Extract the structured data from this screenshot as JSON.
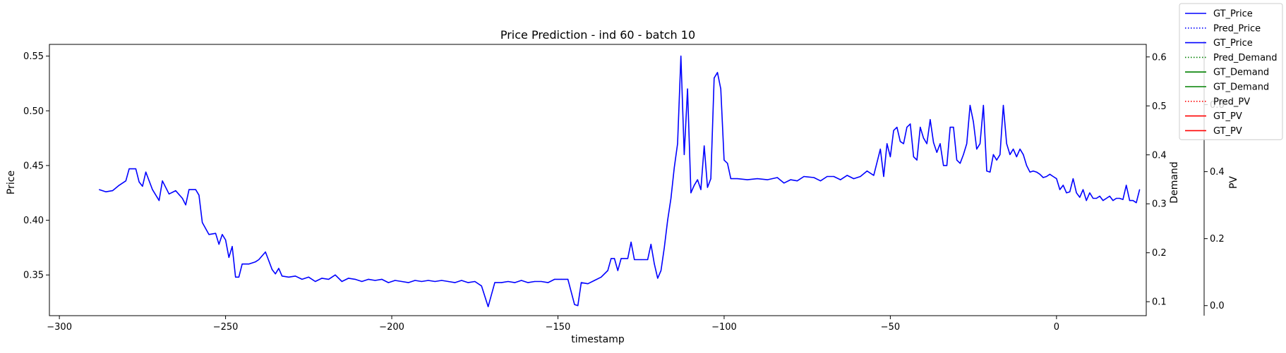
{
  "chart_data": {
    "type": "line",
    "title": "Price Prediction - ind 60 - batch 10",
    "xlabel": "timestamp",
    "grid": false,
    "legend_position": "top-right",
    "axes": {
      "x": {
        "range": [
          -303,
          27
        ],
        "ticks": [
          -300,
          -250,
          -200,
          -150,
          -100,
          -50,
          0
        ],
        "tick_labels": [
          "−300",
          "−250",
          "−200",
          "−150",
          "−100",
          "−50",
          "0"
        ]
      },
      "price": {
        "label": "Price",
        "color": "#0000ff",
        "range": [
          0.3128,
          0.5607
        ],
        "ticks": [
          0.35,
          0.4,
          0.45,
          0.5,
          0.55
        ],
        "tick_labels": [
          "0.35",
          "0.40",
          "0.45",
          "0.50",
          "0.55"
        ]
      },
      "demand": {
        "label": "Demand",
        "color": "#008000",
        "range": [
          0.0715,
          0.6256
        ],
        "ticks": [
          0.1,
          0.2,
          0.3,
          0.4,
          0.5,
          0.6
        ],
        "tick_labels": [
          "0.1",
          "0.2",
          "0.3",
          "0.4",
          "0.5",
          "0.6"
        ]
      },
      "pv": {
        "label": "PV",
        "color": "#ff0000",
        "range": [
          -0.03,
          0.78
        ],
        "ticks": [
          0.0,
          0.2,
          0.4,
          0.6
        ],
        "tick_labels": [
          "0.0",
          "0.2",
          "0.4",
          "0.6"
        ]
      }
    },
    "legend": [
      {
        "label": "GT_Price",
        "color": "#0000ff",
        "style": "solid"
      },
      {
        "label": "Pred_Price",
        "color": "#0000ff",
        "style": "dotted"
      },
      {
        "label": "GT_Price",
        "color": "#0000ff",
        "style": "solid"
      },
      {
        "label": "Pred_Demand",
        "color": "#008000",
        "style": "dotted"
      },
      {
        "label": "GT_Demand",
        "color": "#008000",
        "style": "solid"
      },
      {
        "label": "GT_Demand",
        "color": "#008000",
        "style": "solid"
      },
      {
        "label": "Pred_PV",
        "color": "#ff0000",
        "style": "dotted"
      },
      {
        "label": "GT_PV",
        "color": "#ff0000",
        "style": "solid"
      },
      {
        "label": "GT_PV",
        "color": "#ff0000",
        "style": "solid"
      }
    ],
    "series": [
      {
        "name": "GT_Price",
        "axis": "price",
        "color": "#0000ff",
        "style": "solid",
        "points": [
          [
            -288,
            0.428
          ],
          [
            -286,
            0.426
          ],
          [
            -284,
            0.427
          ],
          [
            -282,
            0.432
          ],
          [
            -280,
            0.436
          ],
          [
            -279,
            0.447
          ],
          [
            -277,
            0.447
          ],
          [
            -276,
            0.435
          ],
          [
            -275,
            0.431
          ],
          [
            -274,
            0.444
          ],
          [
            -272,
            0.428
          ],
          [
            -270,
            0.418
          ],
          [
            -269,
            0.436
          ],
          [
            -267,
            0.424
          ],
          [
            -265,
            0.427
          ],
          [
            -263,
            0.42
          ],
          [
            -262,
            0.414
          ],
          [
            -261,
            0.428
          ],
          [
            -259,
            0.428
          ],
          [
            -258,
            0.423
          ],
          [
            -257,
            0.398
          ],
          [
            -255,
            0.387
          ],
          [
            -253,
            0.388
          ],
          [
            -252,
            0.378
          ],
          [
            -251,
            0.387
          ],
          [
            -250,
            0.382
          ],
          [
            -249,
            0.366
          ],
          [
            -248,
            0.376
          ],
          [
            -247,
            0.348
          ],
          [
            -246,
            0.348
          ],
          [
            -245,
            0.36
          ],
          [
            -243,
            0.36
          ],
          [
            -241,
            0.362
          ],
          [
            -240,
            0.364
          ],
          [
            -238,
            0.371
          ],
          [
            -237,
            0.363
          ],
          [
            -236,
            0.355
          ],
          [
            -235,
            0.351
          ],
          [
            -234,
            0.356
          ],
          [
            -233,
            0.349
          ],
          [
            -231,
            0.348
          ],
          [
            -229,
            0.349
          ],
          [
            -227,
            0.346
          ],
          [
            -225,
            0.348
          ],
          [
            -223,
            0.344
          ],
          [
            -221,
            0.347
          ],
          [
            -219,
            0.346
          ],
          [
            -217,
            0.35
          ],
          [
            -215,
            0.344
          ],
          [
            -213,
            0.347
          ],
          [
            -211,
            0.346
          ],
          [
            -209,
            0.344
          ],
          [
            -207,
            0.346
          ],
          [
            -205,
            0.345
          ],
          [
            -203,
            0.346
          ],
          [
            -201,
            0.343
          ],
          [
            -199,
            0.345
          ],
          [
            -197,
            0.344
          ],
          [
            -195,
            0.343
          ],
          [
            -193,
            0.345
          ],
          [
            -191,
            0.344
          ],
          [
            -189,
            0.345
          ],
          [
            -187,
            0.344
          ],
          [
            -185,
            0.345
          ],
          [
            -183,
            0.344
          ],
          [
            -181,
            0.343
          ],
          [
            -179,
            0.345
          ],
          [
            -177,
            0.343
          ],
          [
            -175,
            0.344
          ],
          [
            -173,
            0.34
          ],
          [
            -171,
            0.321
          ],
          [
            -169,
            0.343
          ],
          [
            -167,
            0.343
          ],
          [
            -165,
            0.344
          ],
          [
            -163,
            0.343
          ],
          [
            -161,
            0.345
          ],
          [
            -159,
            0.343
          ],
          [
            -157,
            0.344
          ],
          [
            -155,
            0.344
          ],
          [
            -153,
            0.343
          ],
          [
            -151,
            0.346
          ],
          [
            -149,
            0.346
          ],
          [
            -147,
            0.346
          ],
          [
            -145,
            0.323
          ],
          [
            -144,
            0.322
          ],
          [
            -143,
            0.343
          ],
          [
            -141,
            0.342
          ],
          [
            -139,
            0.345
          ],
          [
            -137,
            0.348
          ],
          [
            -135,
            0.354
          ],
          [
            -134,
            0.365
          ],
          [
            -133,
            0.365
          ],
          [
            -132,
            0.354
          ],
          [
            -131,
            0.365
          ],
          [
            -129,
            0.365
          ],
          [
            -128,
            0.38
          ],
          [
            -127,
            0.364
          ],
          [
            -125,
            0.364
          ],
          [
            -123,
            0.364
          ],
          [
            -122,
            0.378
          ],
          [
            -121,
            0.36
          ],
          [
            -120,
            0.347
          ],
          [
            -119,
            0.354
          ],
          [
            -118,
            0.375
          ],
          [
            -117,
            0.4
          ],
          [
            -116,
            0.42
          ],
          [
            -115,
            0.448
          ],
          [
            -114,
            0.47
          ],
          [
            -113,
            0.55
          ],
          [
            -112,
            0.46
          ],
          [
            -111,
            0.52
          ],
          [
            -110,
            0.425
          ],
          [
            -109,
            0.432
          ],
          [
            -108,
            0.437
          ],
          [
            -107,
            0.428
          ],
          [
            -106,
            0.468
          ],
          [
            -105,
            0.43
          ],
          [
            -104,
            0.438
          ],
          [
            -103,
            0.53
          ],
          [
            -102,
            0.535
          ],
          [
            -101,
            0.52
          ],
          [
            -100,
            0.455
          ],
          [
            -99,
            0.452
          ],
          [
            -98,
            0.438
          ],
          [
            -96,
            0.438
          ],
          [
            -93,
            0.437
          ],
          [
            -90,
            0.438
          ],
          [
            -87,
            0.437
          ],
          [
            -84,
            0.439
          ],
          [
            -82,
            0.434
          ],
          [
            -80,
            0.437
          ],
          [
            -78,
            0.436
          ],
          [
            -76,
            0.44
          ],
          [
            -73,
            0.439
          ],
          [
            -71,
            0.436
          ],
          [
            -69,
            0.44
          ],
          [
            -67,
            0.44
          ],
          [
            -65,
            0.437
          ],
          [
            -63,
            0.441
          ],
          [
            -61,
            0.438
          ],
          [
            -59,
            0.44
          ],
          [
            -57,
            0.445
          ],
          [
            -55,
            0.441
          ],
          [
            -53,
            0.465
          ],
          [
            -52,
            0.44
          ],
          [
            -51,
            0.47
          ],
          [
            -50,
            0.458
          ],
          [
            -49,
            0.482
          ],
          [
            -48,
            0.485
          ],
          [
            -47,
            0.472
          ],
          [
            -46,
            0.47
          ],
          [
            -45,
            0.485
          ],
          [
            -44,
            0.488
          ],
          [
            -43,
            0.458
          ],
          [
            -42,
            0.455
          ],
          [
            -41,
            0.485
          ],
          [
            -40,
            0.475
          ],
          [
            -39,
            0.47
          ],
          [
            -38,
            0.492
          ],
          [
            -37,
            0.471
          ],
          [
            -36,
            0.462
          ],
          [
            -35,
            0.47
          ],
          [
            -34,
            0.45
          ],
          [
            -33,
            0.45
          ],
          [
            -32,
            0.485
          ],
          [
            -31,
            0.485
          ],
          [
            -30,
            0.455
          ],
          [
            -29,
            0.452
          ],
          [
            -28,
            0.46
          ],
          [
            -27,
            0.47
          ],
          [
            -26,
            0.505
          ],
          [
            -25,
            0.49
          ],
          [
            -24,
            0.465
          ],
          [
            -23,
            0.47
          ],
          [
            -22,
            0.505
          ],
          [
            -21,
            0.445
          ],
          [
            -20,
            0.444
          ],
          [
            -19,
            0.46
          ],
          [
            -18,
            0.455
          ],
          [
            -17,
            0.46
          ],
          [
            -16,
            0.505
          ],
          [
            -15,
            0.47
          ],
          [
            -14,
            0.46
          ],
          [
            -13,
            0.465
          ],
          [
            -12,
            0.458
          ],
          [
            -11,
            0.465
          ],
          [
            -10,
            0.46
          ],
          [
            -9,
            0.45
          ],
          [
            -8,
            0.444
          ],
          [
            -7,
            0.445
          ],
          [
            -6,
            0.444
          ],
          [
            -5,
            0.442
          ],
          [
            -4,
            0.439
          ],
          [
            -3,
            0.44
          ],
          [
            -2,
            0.442
          ],
          [
            -1,
            0.44
          ],
          [
            0,
            0.438
          ],
          [
            1,
            0.428
          ],
          [
            2,
            0.432
          ],
          [
            3,
            0.425
          ],
          [
            4,
            0.426
          ],
          [
            5,
            0.438
          ],
          [
            6,
            0.425
          ],
          [
            7,
            0.421
          ],
          [
            8,
            0.428
          ],
          [
            9,
            0.418
          ],
          [
            10,
            0.425
          ],
          [
            11,
            0.42
          ],
          [
            12,
            0.42
          ],
          [
            13,
            0.422
          ],
          [
            14,
            0.418
          ],
          [
            15,
            0.42
          ],
          [
            16,
            0.422
          ],
          [
            17,
            0.418
          ],
          [
            18,
            0.42
          ],
          [
            19,
            0.42
          ],
          [
            20,
            0.419
          ],
          [
            21,
            0.432
          ],
          [
            22,
            0.418
          ],
          [
            23,
            0.418
          ],
          [
            24,
            0.416
          ],
          [
            25,
            0.428
          ]
        ]
      }
    ]
  }
}
